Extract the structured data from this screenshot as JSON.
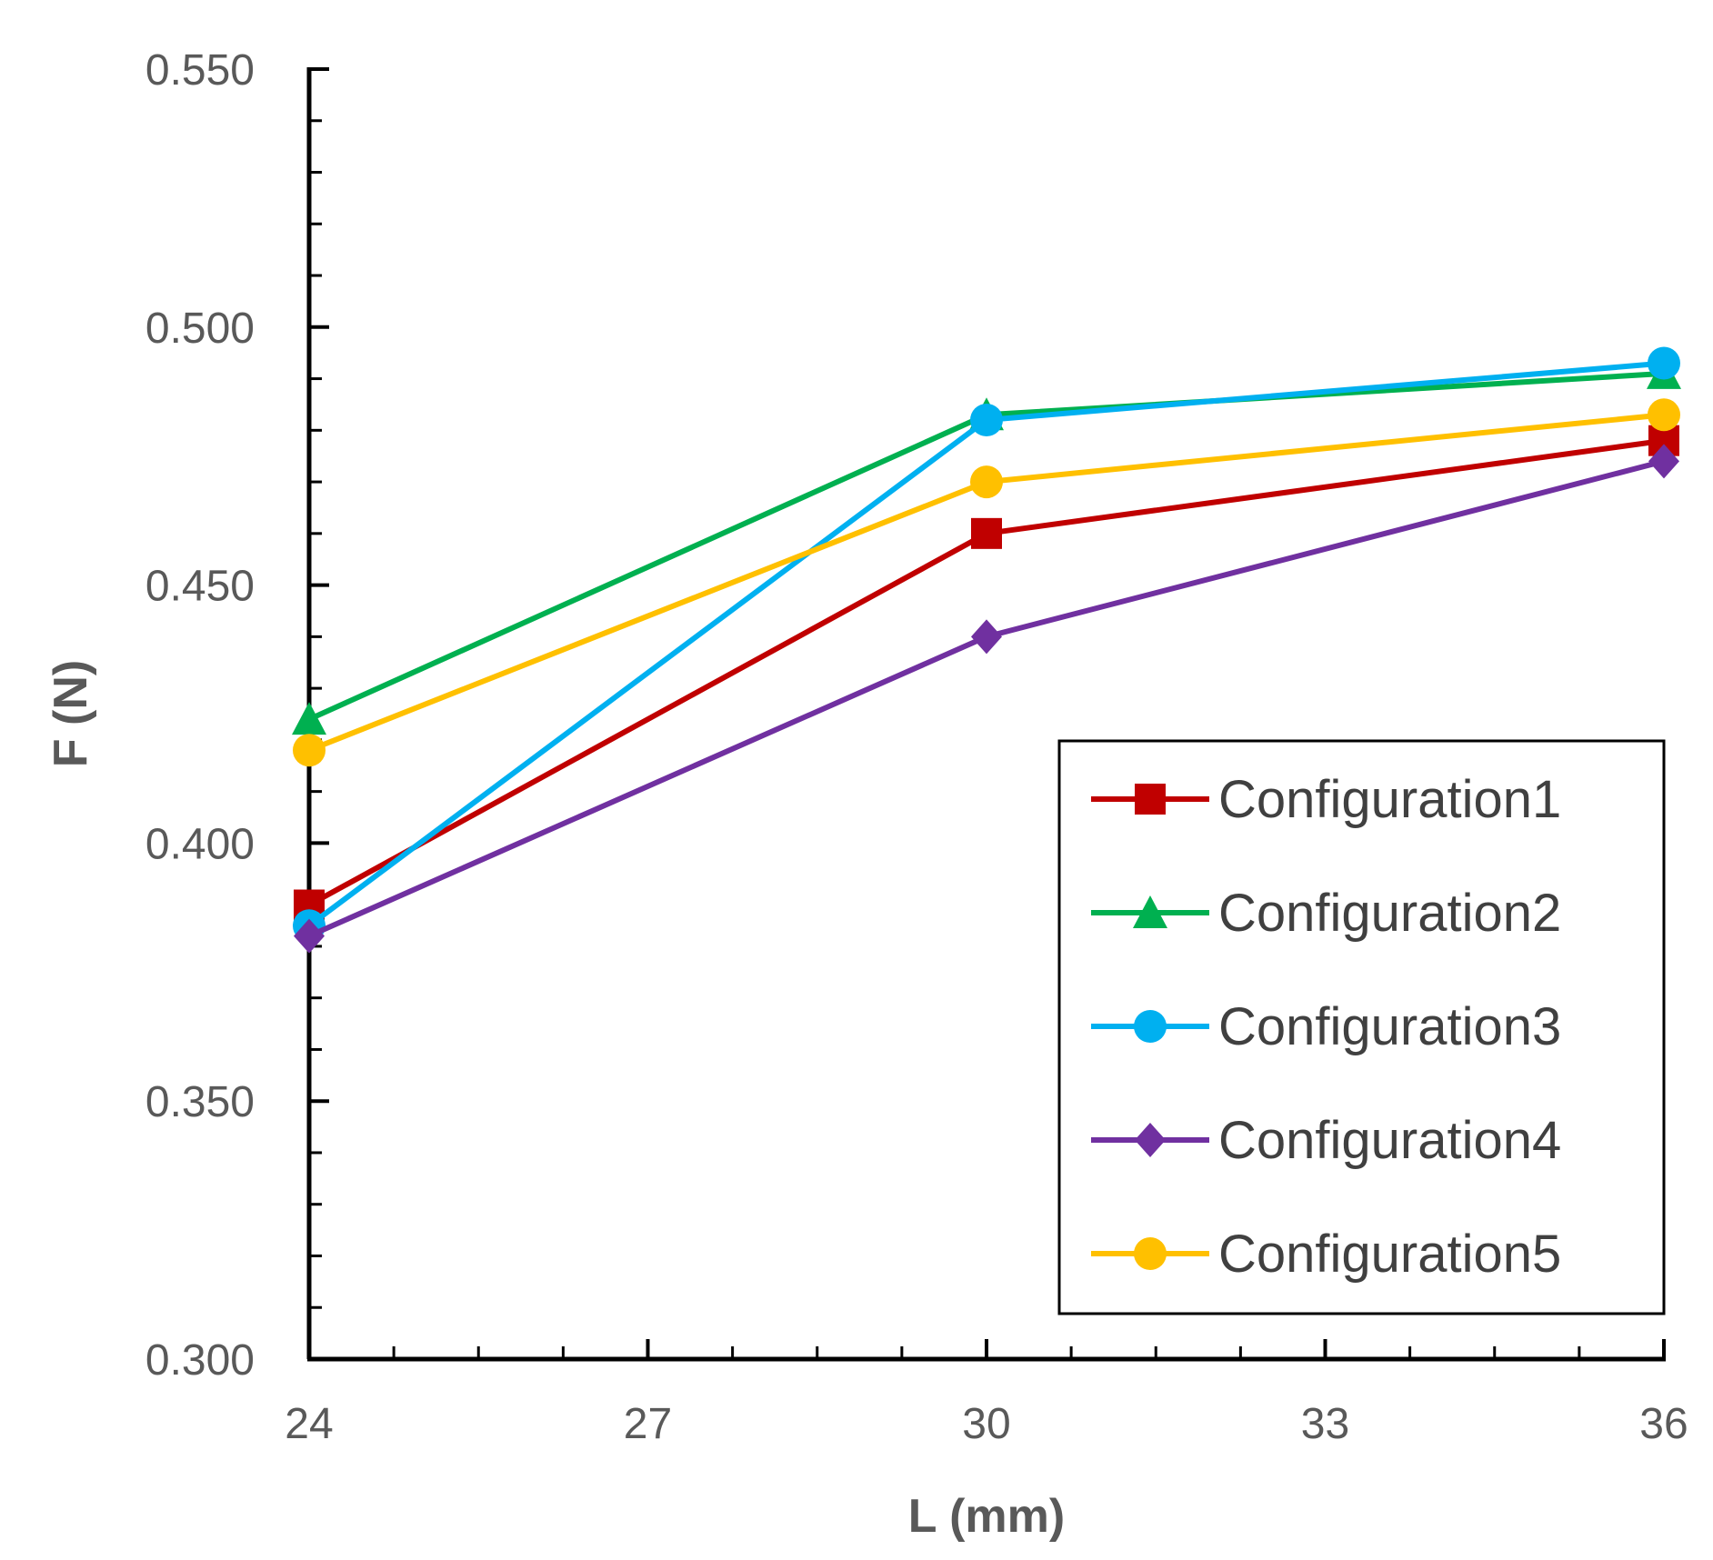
{
  "chart_data": {
    "type": "line",
    "title": "",
    "xlabel": "L (mm)",
    "ylabel": "F (N)",
    "x": [
      24,
      30,
      36
    ],
    "xlim": [
      24,
      36
    ],
    "ylim": [
      0.3,
      0.55
    ],
    "xticks": [
      24,
      27,
      30,
      33,
      36
    ],
    "xtick_labels": [
      "24",
      "27",
      "30",
      "33",
      "36"
    ],
    "yticks": [
      0.3,
      0.35,
      0.4,
      0.45,
      0.5,
      0.55
    ],
    "ytick_labels": [
      "0.300",
      "0.350",
      "0.400",
      "0.450",
      "0.500",
      "0.550"
    ],
    "grid": false,
    "legend_position": "bottom-right",
    "series": [
      {
        "name": "Configuration1",
        "values": [
          0.388,
          0.46,
          0.478
        ],
        "color": "#C00000",
        "marker": "square"
      },
      {
        "name": "Configuration2",
        "values": [
          0.424,
          0.483,
          0.491
        ],
        "color": "#00B050",
        "marker": "triangle"
      },
      {
        "name": "Configuration3",
        "values": [
          0.384,
          0.482,
          0.493
        ],
        "color": "#00B0F0",
        "marker": "circle"
      },
      {
        "name": "Configuration4",
        "values": [
          0.382,
          0.44,
          0.474
        ],
        "color": "#7030A0",
        "marker": "diamond"
      },
      {
        "name": "Configuration5",
        "values": [
          0.418,
          0.47,
          0.483
        ],
        "color": "#FFC000",
        "marker": "circle"
      }
    ]
  }
}
